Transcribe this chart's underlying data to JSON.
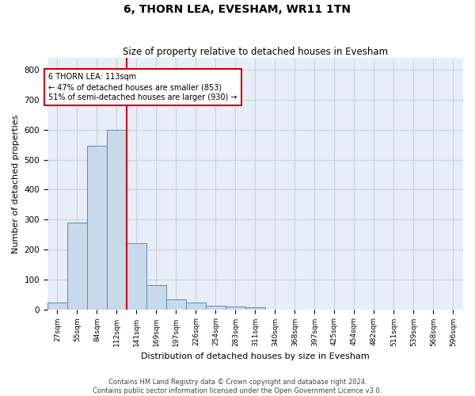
{
  "title": "6, THORN LEA, EVESHAM, WR11 1TN",
  "subtitle": "Size of property relative to detached houses in Evesham",
  "xlabel": "Distribution of detached houses by size in Evesham",
  "ylabel": "Number of detached properties",
  "footer_line1": "Contains HM Land Registry data © Crown copyright and database right 2024.",
  "footer_line2": "Contains public sector information licensed under the Open Government Licence v3.0.",
  "bar_color": "#c9d9ec",
  "bar_edge_color": "#5a8ab5",
  "grid_color": "#c8d0e0",
  "background_color": "#e8eef8",
  "annotation_box_color": "#cc0000",
  "vline_color": "#cc0000",
  "categories": [
    "27sqm",
    "55sqm",
    "84sqm",
    "112sqm",
    "141sqm",
    "169sqm",
    "197sqm",
    "226sqm",
    "254sqm",
    "283sqm",
    "311sqm",
    "340sqm",
    "368sqm",
    "397sqm",
    "425sqm",
    "454sqm",
    "482sqm",
    "511sqm",
    "539sqm",
    "568sqm",
    "596sqm"
  ],
  "values": [
    22,
    290,
    548,
    600,
    222,
    80,
    33,
    23,
    12,
    10,
    6,
    0,
    0,
    0,
    0,
    0,
    0,
    0,
    0,
    0,
    0
  ],
  "ylim": [
    0,
    840
  ],
  "yticks": [
    0,
    100,
    200,
    300,
    400,
    500,
    600,
    700,
    800
  ],
  "property_label": "6 THORN LEA: 113sqm",
  "pct_smaller": "47% of detached houses are smaller (853)",
  "pct_larger": "51% of semi-detached houses are larger (930)",
  "vline_x": 3.5
}
